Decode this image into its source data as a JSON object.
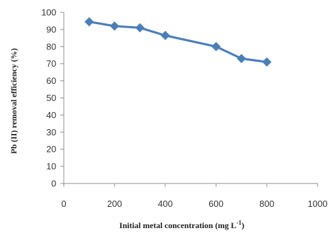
{
  "chart_data": {
    "type": "line",
    "title": "",
    "xlabel": "Initial metal concentration (mg L",
    "xlabel_sup": "-1",
    "xlabel_suffix": ")",
    "ylabel": "Pb (II) removal efficiency (%)",
    "xlim": [
      0,
      1000
    ],
    "ylim": [
      0,
      100
    ],
    "x_ticks": [
      0,
      200,
      400,
      600,
      800,
      1000
    ],
    "y_ticks": [
      0,
      10,
      20,
      30,
      40,
      50,
      60,
      70,
      80,
      90,
      100
    ],
    "grid": false,
    "legend": "none",
    "series": [
      {
        "color": "#4A7EBB",
        "marker": "diamond",
        "x": [
          100,
          200,
          300,
          400,
          600,
          700,
          800
        ],
        "y": [
          94.5,
          92,
          91,
          86.5,
          80,
          73,
          71
        ]
      }
    ]
  }
}
